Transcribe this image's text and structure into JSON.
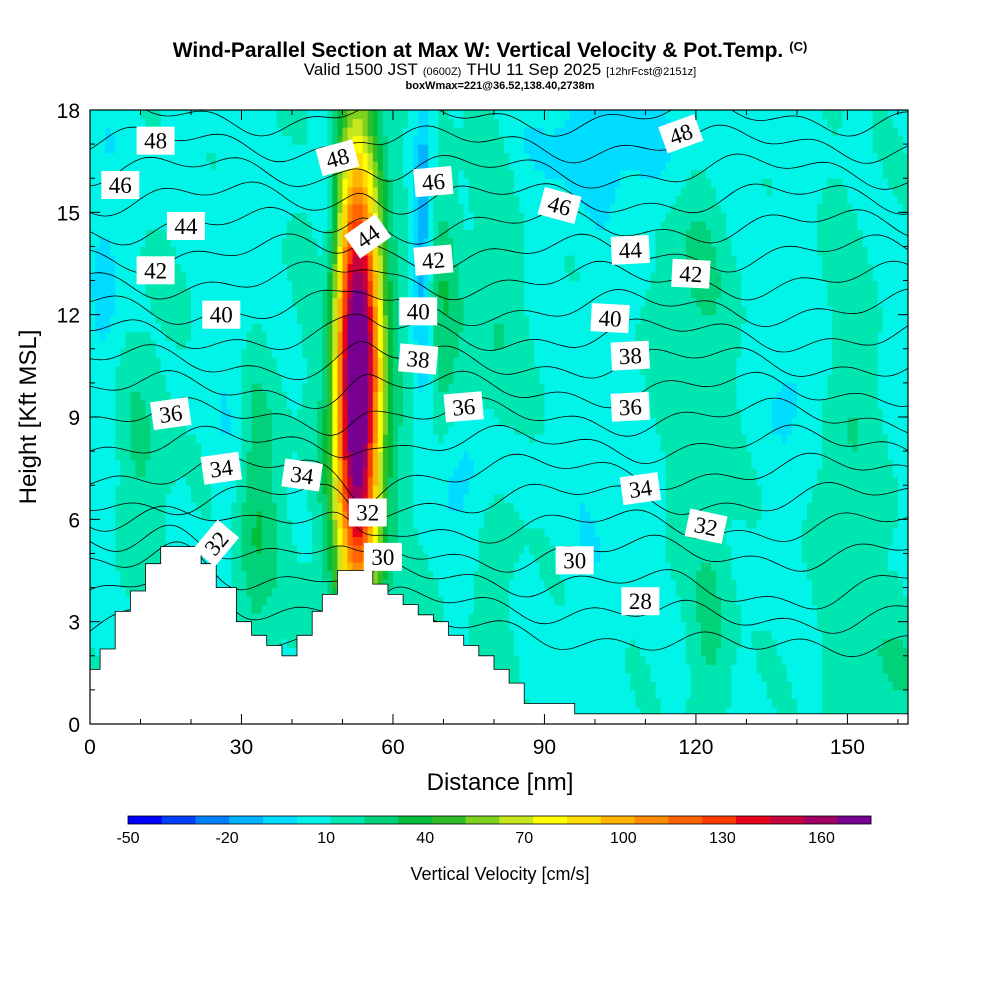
{
  "chart_data": {
    "type": "heatmap",
    "title": {
      "main": "Wind-Parallel Section at Max W: Vertical Velocity & Pot.Temp.",
      "main_suffix": "(C)",
      "line2_a": "Valid 1500 JST",
      "line2_b": "(0600Z)",
      "line2_c": "THU 11 Sep 2025",
      "line2_d": "[12hrFcst@2151z]",
      "line3": "boxWmax=221@36.52,138.40,2738m"
    },
    "xlabel": "Distance [nm]",
    "ylabel": "Height [Kft MSL]",
    "xlim": [
      0,
      162
    ],
    "ylim": [
      0,
      18
    ],
    "xticks": [
      0,
      30,
      60,
      90,
      120,
      150
    ],
    "yticks": [
      0,
      3,
      6,
      9,
      12,
      15,
      18
    ],
    "colorbar": {
      "label": "Vertical Velocity [cm/s]",
      "range": [
        -50,
        175
      ],
      "tick_values": [
        -50,
        -20,
        10,
        40,
        70,
        100,
        130,
        160
      ],
      "tick_labels": [
        "-50",
        "-20",
        "10",
        "40",
        "70",
        "100",
        "130",
        "160"
      ],
      "colors": [
        "#0000ff",
        "#0040ff",
        "#0080ff",
        "#00b4ff",
        "#00dcff",
        "#00f5e8",
        "#00e6b0",
        "#00d27a",
        "#00be3c",
        "#30be28",
        "#7ed21e",
        "#c8e61e",
        "#ffff00",
        "#ffdc00",
        "#ffb400",
        "#ff8c00",
        "#ff6400",
        "#ff3c00",
        "#e6001e",
        "#c8003c",
        "#a00064",
        "#780090"
      ]
    },
    "terrain_profile": [
      [
        0,
        1.6
      ],
      [
        2,
        1.6
      ],
      [
        2,
        2.2
      ],
      [
        5,
        2.2
      ],
      [
        5,
        3.3
      ],
      [
        8,
        3.3
      ],
      [
        8,
        3.9
      ],
      [
        11,
        3.9
      ],
      [
        11,
        4.7
      ],
      [
        14,
        4.7
      ],
      [
        14,
        5.2
      ],
      [
        22,
        5.2
      ],
      [
        22,
        4.7
      ],
      [
        25,
        4.7
      ],
      [
        25,
        4.0
      ],
      [
        29,
        4.0
      ],
      [
        29,
        3.0
      ],
      [
        32,
        3.0
      ],
      [
        32,
        2.6
      ],
      [
        35,
        2.6
      ],
      [
        35,
        2.3
      ],
      [
        38,
        2.3
      ],
      [
        38,
        2.0
      ],
      [
        41,
        2.0
      ],
      [
        41,
        2.6
      ],
      [
        44,
        2.6
      ],
      [
        44,
        3.3
      ],
      [
        46,
        3.3
      ],
      [
        46,
        3.8
      ],
      [
        49,
        3.8
      ],
      [
        49,
        4.5
      ],
      [
        56,
        4.5
      ],
      [
        56,
        4.1
      ],
      [
        59,
        4.1
      ],
      [
        59,
        3.8
      ],
      [
        62,
        3.8
      ],
      [
        62,
        3.5
      ],
      [
        65,
        3.5
      ],
      [
        65,
        3.2
      ],
      [
        68,
        3.2
      ],
      [
        68,
        3.0
      ],
      [
        71,
        3.0
      ],
      [
        71,
        2.6
      ],
      [
        74,
        2.6
      ],
      [
        74,
        2.3
      ],
      [
        77,
        2.3
      ],
      [
        77,
        2.0
      ],
      [
        80,
        2.0
      ],
      [
        80,
        1.6
      ],
      [
        83,
        1.6
      ],
      [
        83,
        1.2
      ],
      [
        86,
        1.2
      ],
      [
        86,
        0.6
      ],
      [
        96,
        0.6
      ],
      [
        96,
        0.3
      ],
      [
        162,
        0.3
      ]
    ],
    "w_field": {
      "background": 9,
      "features": [
        {
          "x": 53,
          "y": 10,
          "sx": 3.0,
          "sy": 4.6,
          "value": 165
        },
        {
          "x": 53,
          "y": 10,
          "sx": 5.5,
          "sy": 6.5,
          "value": 25
        },
        {
          "x": 33,
          "y": 6,
          "sx": 3.0,
          "sy": 3.0,
          "value": 24
        },
        {
          "x": 70,
          "y": 12,
          "sx": 2.5,
          "sy": 3.0,
          "value": 20
        },
        {
          "x": 66,
          "y": 14.5,
          "sx": 1.2,
          "sy": 3.5,
          "value": -30
        },
        {
          "x": 47,
          "y": 14,
          "sx": 1.8,
          "sy": 3.5,
          "value": -15
        },
        {
          "x": 75,
          "y": 7.5,
          "sx": 5.0,
          "sy": 1.3,
          "value": -18
        },
        {
          "x": 28,
          "y": 10.5,
          "sx": 2.5,
          "sy": 4.0,
          "value": -8
        },
        {
          "x": 3,
          "y": 12.5,
          "sx": 2.5,
          "sy": 3.5,
          "value": -12
        },
        {
          "x": 105,
          "y": 17,
          "sx": 15,
          "sy": 1.4,
          "value": -14
        },
        {
          "x": 140,
          "y": 10,
          "sx": 4.0,
          "sy": 1.5,
          "value": -12
        },
        {
          "x": 100,
          "y": 7,
          "sx": 4.0,
          "sy": 4.0,
          "value": -6
        },
        {
          "x": 123,
          "y": 3,
          "sx": 3.0,
          "sy": 2.5,
          "value": 14
        },
        {
          "x": 120,
          "y": 13,
          "sx": 5.0,
          "sy": 4.0,
          "value": 14
        },
        {
          "x": 150,
          "y": 8,
          "sx": 4.0,
          "sy": 5.0,
          "value": 12
        },
        {
          "x": 158,
          "y": 1.5,
          "sx": 6.0,
          "sy": 1.5,
          "value": 12
        },
        {
          "x": 80,
          "y": 11,
          "sx": 4.0,
          "sy": 6.0,
          "value": 12
        },
        {
          "x": 10,
          "y": 8,
          "sx": 4.0,
          "sy": 3.0,
          "value": 13
        }
      ]
    },
    "theta_contours": {
      "levels": [
        28,
        29,
        30,
        31,
        32,
        33,
        34,
        35,
        36,
        37,
        38,
        39,
        40,
        41,
        42,
        43,
        44,
        45,
        46,
        47,
        48,
        49
      ],
      "level_heights": [
        2.7,
        3.5,
        4.3,
        5.0,
        5.8,
        6.6,
        7.4,
        8.2,
        9.0,
        9.8,
        10.6,
        11.4,
        12.2,
        13.0,
        13.8,
        14.6,
        15.4,
        16.2,
        17.0,
        17.8,
        18.6,
        19.4
      ],
      "labels": [
        {
          "text": "48",
          "x": 13,
          "y": 17.1,
          "angle": 0
        },
        {
          "text": "46",
          "x": 6,
          "y": 15.8,
          "angle": 0
        },
        {
          "text": "44",
          "x": 19,
          "y": 14.6,
          "angle": 0
        },
        {
          "text": "42",
          "x": 13,
          "y": 13.3,
          "angle": 0
        },
        {
          "text": "40",
          "x": 26,
          "y": 12.0,
          "angle": 0
        },
        {
          "text": "36",
          "x": 16,
          "y": 9.1,
          "angle": -8
        },
        {
          "text": "34",
          "x": 26,
          "y": 7.5,
          "angle": -8
        },
        {
          "text": "34",
          "x": 42,
          "y": 7.3,
          "angle": 8
        },
        {
          "text": "32",
          "x": 25,
          "y": 5.3,
          "angle": -50
        },
        {
          "text": "48",
          "x": 49,
          "y": 16.6,
          "angle": -15
        },
        {
          "text": "44",
          "x": 55,
          "y": 14.3,
          "angle": -35
        },
        {
          "text": "32",
          "x": 55,
          "y": 6.2,
          "angle": 0
        },
        {
          "text": "30",
          "x": 58,
          "y": 4.9,
          "angle": 0
        },
        {
          "text": "46",
          "x": 68,
          "y": 15.9,
          "angle": -5
        },
        {
          "text": "42",
          "x": 68,
          "y": 13.6,
          "angle": -5
        },
        {
          "text": "40",
          "x": 65,
          "y": 12.1,
          "angle": 0
        },
        {
          "text": "38",
          "x": 65,
          "y": 10.7,
          "angle": 5
        },
        {
          "text": "36",
          "x": 74,
          "y": 9.3,
          "angle": -5
        },
        {
          "text": "46",
          "x": 93,
          "y": 15.2,
          "angle": 15
        },
        {
          "text": "44",
          "x": 107,
          "y": 13.9,
          "angle": -3
        },
        {
          "text": "42",
          "x": 119,
          "y": 13.2,
          "angle": 3
        },
        {
          "text": "48",
          "x": 117,
          "y": 17.3,
          "angle": -20
        },
        {
          "text": "40",
          "x": 103,
          "y": 11.9,
          "angle": 3
        },
        {
          "text": "38",
          "x": 107,
          "y": 10.8,
          "angle": -3
        },
        {
          "text": "36",
          "x": 107,
          "y": 9.3,
          "angle": -3
        },
        {
          "text": "34",
          "x": 109,
          "y": 6.9,
          "angle": -8
        },
        {
          "text": "32",
          "x": 122,
          "y": 5.8,
          "angle": 12
        },
        {
          "text": "30",
          "x": 96,
          "y": 4.8,
          "angle": 0
        },
        {
          "text": "28",
          "x": 109,
          "y": 3.6,
          "angle": 0
        }
      ]
    }
  }
}
